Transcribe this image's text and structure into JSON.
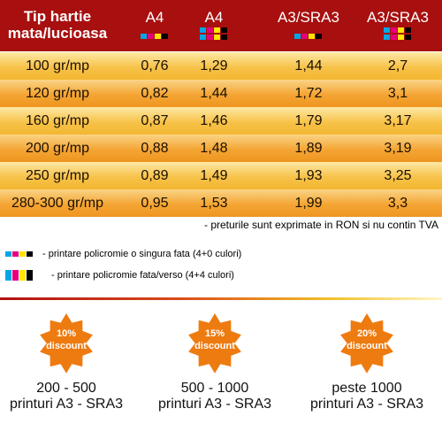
{
  "header": {
    "title_line1": "Tip hartie",
    "title_line2": "mata/lucioasa",
    "columns": [
      "A4",
      "A4",
      "A3/SRA3",
      "A3/SRA3"
    ]
  },
  "rows": [
    {
      "label": "100 gr/mp",
      "v": [
        "0,76",
        "1,29",
        "1,44",
        "2,7"
      ]
    },
    {
      "label": "120 gr/mp",
      "v": [
        "0,82",
        "1,44",
        "1,72",
        "3,1"
      ]
    },
    {
      "label": "160 gr/mp",
      "v": [
        "0,87",
        "1,46",
        "1,79",
        "3,17"
      ]
    },
    {
      "label": "200 gr/mp",
      "v": [
        "0,88",
        "1,48",
        "1,89",
        "3,19"
      ]
    },
    {
      "label": "250 gr/mp",
      "v": [
        "0,89",
        "1,49",
        "1,93",
        "3,25"
      ]
    },
    {
      "label": "280-300 gr/mp",
      "v": [
        "0,95",
        "1,53",
        "1,99",
        "3,3"
      ]
    }
  ],
  "note": "- preturile sunt exprimate in RON si nu contin TVA",
  "legend": {
    "single": "- printare policromie o singura fata (4+0 culori)",
    "double": "- printare policromie fata/verso (4+4 culori)"
  },
  "discounts": [
    {
      "percent": "10%",
      "word": "discount",
      "range1": "200 - 500",
      "range2": "printuri A3 - SRA3"
    },
    {
      "percent": "15%",
      "word": "discount",
      "range1": "500 - 1000",
      "range2": "printuri A3 - SRA3"
    },
    {
      "percent": "20%",
      "word": "discount",
      "range1": "peste 1000",
      "range2": "printuri A3 - SRA3"
    }
  ],
  "colors": {
    "header_bg": "#a80f0f",
    "cyan": "#00a6e6",
    "magenta": "#e6007e",
    "yellow": "#ffe500",
    "black": "#000000",
    "badge": "#ee7b10"
  }
}
